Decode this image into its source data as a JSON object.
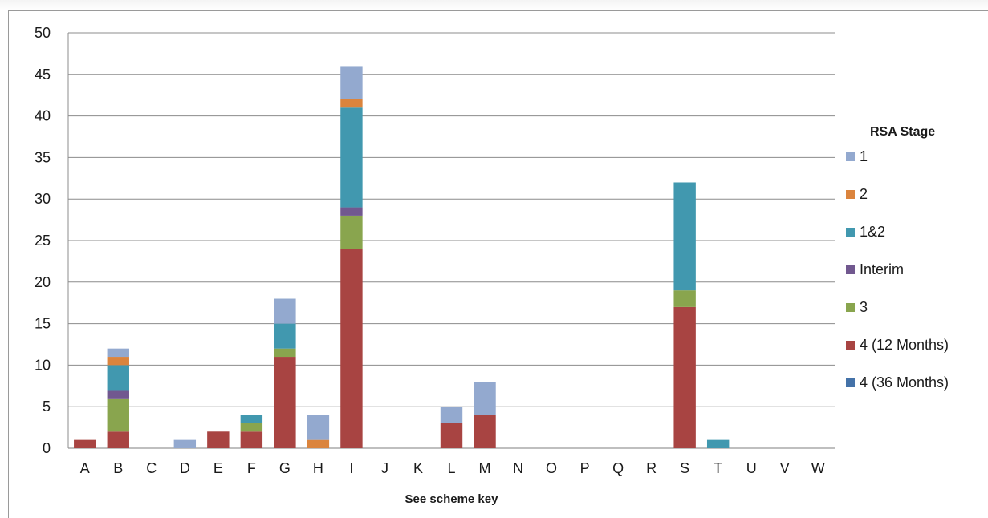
{
  "chart_data": {
    "type": "bar",
    "stacked": true,
    "title": "",
    "xlabel": "See scheme key",
    "ylabel": "",
    "ylim": [
      0,
      50
    ],
    "yticks": [
      0,
      5,
      10,
      15,
      20,
      25,
      30,
      35,
      40,
      45,
      50
    ],
    "grid": true,
    "legend_position": "right",
    "legend_title": "RSA Stage",
    "categories": [
      "A",
      "B",
      "C",
      "D",
      "E",
      "F",
      "G",
      "H",
      "I",
      "J",
      "K",
      "L",
      "M",
      "N",
      "O",
      "P",
      "Q",
      "R",
      "S",
      "T",
      "U",
      "V",
      "W"
    ],
    "series": [
      {
        "name": "4 (36 Months)",
        "color": "#4472a8",
        "values": [
          0,
          0,
          0,
          0,
          0,
          0,
          0,
          0,
          0,
          0,
          0,
          0,
          0,
          0,
          0,
          0,
          0,
          0,
          0,
          0,
          0,
          0,
          0
        ]
      },
      {
        "name": "4 (12 Months)",
        "color": "#a84442",
        "values": [
          1,
          2,
          0,
          0,
          2,
          2,
          11,
          0,
          24,
          0,
          0,
          3,
          4,
          0,
          0,
          0,
          0,
          0,
          17,
          0,
          0,
          0,
          0
        ]
      },
      {
        "name": "3",
        "color": "#89a54e",
        "values": [
          0,
          4,
          0,
          0,
          0,
          1,
          1,
          0,
          4,
          0,
          0,
          0,
          0,
          0,
          0,
          0,
          0,
          0,
          2,
          0,
          0,
          0,
          0
        ]
      },
      {
        "name": "Interim",
        "color": "#71588f",
        "values": [
          0,
          1,
          0,
          0,
          0,
          0,
          0,
          0,
          1,
          0,
          0,
          0,
          0,
          0,
          0,
          0,
          0,
          0,
          0,
          0,
          0,
          0,
          0
        ]
      },
      {
        "name": "1&2",
        "color": "#4198af",
        "values": [
          0,
          3,
          0,
          0,
          0,
          1,
          3,
          0,
          12,
          0,
          0,
          0,
          0,
          0,
          0,
          0,
          0,
          0,
          13,
          1,
          0,
          0,
          0
        ]
      },
      {
        "name": "2",
        "color": "#db843d",
        "values": [
          0,
          1,
          0,
          0,
          0,
          0,
          0,
          1,
          1,
          0,
          0,
          0,
          0,
          0,
          0,
          0,
          0,
          0,
          0,
          0,
          0,
          0,
          0
        ]
      },
      {
        "name": "1",
        "color": "#93a9cf",
        "values": [
          0,
          1,
          0,
          1,
          0,
          0,
          3,
          3,
          4,
          0,
          0,
          2,
          4,
          0,
          0,
          0,
          0,
          0,
          0,
          0,
          0,
          0,
          0
        ]
      }
    ],
    "legend_order": [
      "1",
      "2",
      "1&2",
      "Interim",
      "3",
      "4 (12 Months)",
      "4 (36 Months)"
    ]
  }
}
